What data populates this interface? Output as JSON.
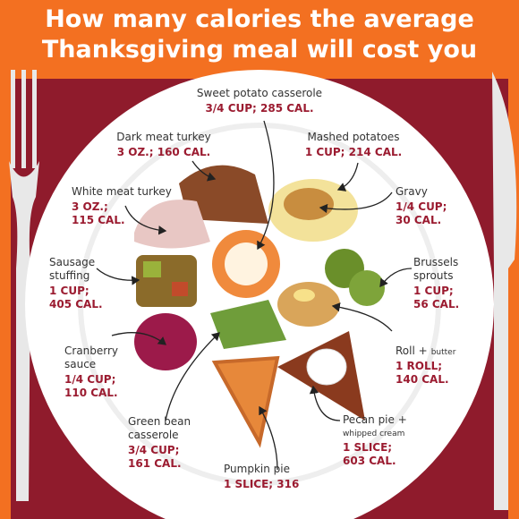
{
  "header": {
    "title_lines": [
      "How many calories the average",
      "Thanksgiving meal will cost you"
    ]
  },
  "items": [
    {
      "name_lines": [
        "Sweet potato casserole"
      ],
      "detail_lines": [
        "3/4 CUP; 285 CAL."
      ]
    },
    {
      "name_lines": [
        "Dark meat turkey"
      ],
      "detail_lines": [
        "3 OZ.; 160 CAL."
      ]
    },
    {
      "name_lines": [
        "Mashed potatoes"
      ],
      "detail_lines": [
        "1 CUP; 214 CAL."
      ]
    },
    {
      "name_lines": [
        "White meat turkey"
      ],
      "detail_lines": [
        "3 OZ.;",
        "115 CAL."
      ]
    },
    {
      "name_lines": [
        "Gravy"
      ],
      "detail_lines": [
        "1/4 CUP;",
        "30 CAL."
      ]
    },
    {
      "name_lines": [
        "Sausage",
        "stuffing"
      ],
      "detail_lines": [
        "1 CUP;",
        "405 CAL."
      ]
    },
    {
      "name_lines": [
        "Brussels",
        "sprouts"
      ],
      "detail_lines": [
        "1 CUP;",
        "56 CAL."
      ]
    },
    {
      "name_lines": [
        "Roll +"
      ],
      "name_note": "butter",
      "detail_lines": [
        "1 ROLL;",
        "140 CAL."
      ]
    },
    {
      "name_lines": [
        "Cranberry",
        "sauce"
      ],
      "detail_lines": [
        "1/4 CUP;",
        "110 CAL."
      ]
    },
    {
      "name_lines": [
        "Pecan pie +"
      ],
      "name_note": "whipped cream",
      "detail_lines": [
        "1 SLICE;",
        "603 CAL."
      ]
    },
    {
      "name_lines": [
        "Green bean",
        "casserole"
      ],
      "detail_lines": [
        "3/4 CUP;",
        "161 CAL."
      ]
    },
    {
      "name_lines": [
        "Pumpkin pie"
      ],
      "detail_lines": [
        "1 SLICE; 316"
      ]
    }
  ]
}
